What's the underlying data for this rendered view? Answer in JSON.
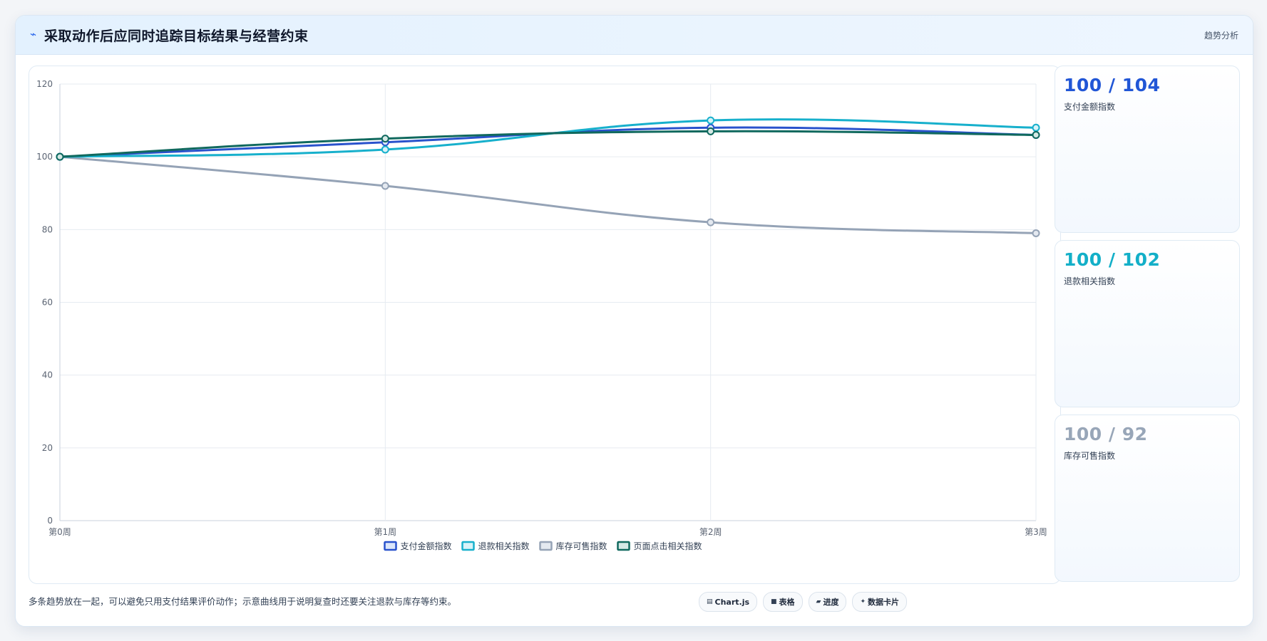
{
  "header": {
    "icon": "pulse-icon",
    "title": "采取动作后应同时追踪目标结果与经营约束",
    "link_label": "趋势分析"
  },
  "chart_data": {
    "type": "line",
    "categories": [
      "第0周",
      "第1周",
      "第2周",
      "第3周"
    ],
    "ylim": [
      0,
      120
    ],
    "yticks": [
      0,
      20,
      40,
      60,
      80,
      100,
      120
    ],
    "grid": true,
    "legend_position": "bottom",
    "series": [
      {
        "name": "支付金额指数",
        "values": [
          100,
          104,
          108,
          106
        ],
        "color": "#2952cc",
        "fill": "#dbe6fb"
      },
      {
        "name": "退款相关指数",
        "values": [
          100,
          102,
          110,
          108
        ],
        "color": "#17b0cc",
        "fill": "#d8f3f8"
      },
      {
        "name": "库存可售指数",
        "values": [
          100,
          92,
          82,
          79
        ],
        "color": "#95a3b6",
        "fill": "#e4e9f0"
      },
      {
        "name": "页面点击相关指数",
        "values": [
          100,
          105,
          107,
          106
        ],
        "color": "#10695e",
        "fill": "#d5e9e5"
      }
    ]
  },
  "kpis": [
    {
      "value": "100 / 104",
      "label": "支付金额指数",
      "color": "#2156d6"
    },
    {
      "value": "100 / 102",
      "label": "退款相关指数",
      "color": "#13afc8"
    },
    {
      "value": "100 / 92",
      "label": "库存可售指数",
      "color": "#98a6b8"
    }
  ],
  "footer": {
    "note": "多条趋势放在一起，可以避免只用支付结果评价动作；示意曲线用于说明复查时还要关注退款与库存等约束。",
    "chips": [
      {
        "icon": "▤",
        "label": "Chart.js"
      },
      {
        "icon": "■",
        "label": "表格"
      },
      {
        "icon": "▰",
        "label": "进度"
      },
      {
        "icon": "✦",
        "label": "数据卡片"
      }
    ]
  }
}
